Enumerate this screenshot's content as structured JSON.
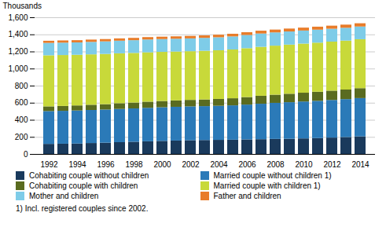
{
  "chart_data": {
    "type": "bar",
    "stacked": true,
    "ylabel": "Thousands",
    "footnote": "1)  Incl. registered couples since 2002.",
    "categories": [
      "1992",
      null,
      "1994",
      null,
      "1996",
      null,
      "1998",
      null,
      "2000",
      null,
      "2002",
      null,
      "2004",
      null,
      "2006",
      null,
      "2008",
      null,
      "2010",
      null,
      "2012",
      null,
      "2014"
    ],
    "series": [
      {
        "name": "Cohabiting couple without children",
        "color": "#1a3a5c",
        "values": [
          118,
          120,
          122,
          128,
          132,
          138,
          143,
          148,
          153,
          157,
          161,
          163,
          165,
          167,
          170,
          173,
          176,
          178,
          182,
          186,
          192,
          198,
          206
        ]
      },
      {
        "name": "Married couple without children 1)",
        "color": "#2b7ab8",
        "values": [
          384,
          385,
          387,
          387,
          388,
          389,
          390,
          392,
          394,
          395,
          396,
          397,
          399,
          402,
          408,
          415,
          422,
          428,
          432,
          436,
          440,
          444,
          448
        ]
      },
      {
        "name": "Cohabiting couple with children",
        "color": "#5a6b20",
        "values": [
          55,
          57,
          59,
          61,
          63,
          67,
          69,
          72,
          73,
          75,
          76,
          78,
          80,
          83,
          88,
          93,
          96,
          99,
          103,
          106,
          109,
          112,
          116
        ]
      },
      {
        "name": "Married couple with children 1)",
        "color": "#c8d93a",
        "values": [
          598,
          596,
          593,
          590,
          588,
          584,
          581,
          578,
          575,
          572,
          570,
          570,
          570,
          571,
          572,
          573,
          574,
          575,
          575,
          575,
          574,
          573,
          573
        ]
      },
      {
        "name": "Mother and children",
        "color": "#7ecce8",
        "values": [
          145,
          145,
          145,
          146,
          147,
          148,
          149,
          150,
          150,
          150,
          150,
          151,
          152,
          153,
          155,
          156,
          155,
          154,
          153,
          152,
          151,
          150,
          149
        ]
      },
      {
        "name": "Father and children",
        "color": "#e87c2a",
        "values": [
          25,
          26,
          26,
          27,
          27,
          27,
          27,
          28,
          28,
          28,
          29,
          29,
          30,
          31,
          32,
          33,
          33,
          34,
          34,
          35,
          36,
          37,
          38
        ]
      }
    ],
    "ylim": [
      0,
      1600
    ],
    "yticks": [
      0,
      200,
      400,
      600,
      800,
      1000,
      1200,
      1400,
      1600
    ],
    "grid": true,
    "legend": "bottom"
  }
}
